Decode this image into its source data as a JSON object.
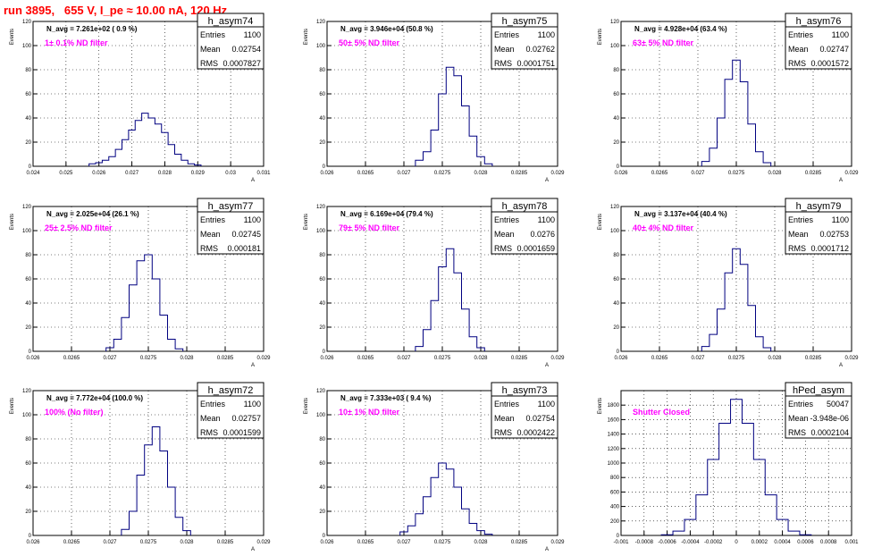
{
  "page_title": "run 3895,   655 V, I_pe ≈ 10.00 nA, 120 Hz",
  "colors": {
    "hist": "#000080",
    "filter_label": "#ff00ff",
    "title": "#ff0000",
    "grid": "#000000"
  },
  "stat_labels": {
    "entries": "Entries",
    "mean": "Mean",
    "rms": "RMS"
  },
  "chart_data": [
    {
      "type": "histogram",
      "name": "h_asym74",
      "n_avg": "N_avg = 7.261e+02 ( 0.9 %)",
      "filter": "1± 0.1% ND filter",
      "entries": "1100",
      "mean": "0.02754",
      "rms": "0.0007827",
      "xlim": [
        0.024,
        0.031
      ],
      "ylim": [
        0,
        120
      ],
      "xticks": [
        0.024,
        0.025,
        0.026,
        0.027,
        0.028,
        0.029,
        0.03,
        0.031
      ],
      "xtick_labels": [
        "0.024",
        "0.025",
        "0.026",
        "0.027",
        "0.028",
        "0.029",
        "0.03",
        "0.031"
      ],
      "yticks": [
        0,
        20,
        40,
        60,
        80,
        100,
        120
      ],
      "ylabel": "Events",
      "xlabel": "A",
      "bins": [
        0.0258,
        0.026,
        0.0262,
        0.0264,
        0.0266,
        0.0268,
        0.027,
        0.0272,
        0.0274,
        0.0276,
        0.0278,
        0.028,
        0.0282,
        0.0284,
        0.0286,
        0.0288,
        0.029
      ],
      "counts": [
        2,
        3,
        5,
        8,
        14,
        22,
        30,
        38,
        44,
        40,
        35,
        28,
        18,
        10,
        5,
        2,
        1
      ]
    },
    {
      "type": "histogram",
      "name": "h_asym75",
      "n_avg": "N_avg = 3.946e+04 (50.8 %)",
      "filter": "50± 5% ND filter",
      "entries": "1100",
      "mean": "0.02762",
      "rms": "0.0001751",
      "xlim": [
        0.026,
        0.029
      ],
      "ylim": [
        0,
        120
      ],
      "xticks": [
        0.026,
        0.0265,
        0.027,
        0.0275,
        0.028,
        0.0285,
        0.029
      ],
      "xtick_labels": [
        "0.026",
        "0.0265",
        "0.027",
        "0.0275",
        "0.028",
        "0.0285",
        "0.029"
      ],
      "yticks": [
        0,
        20,
        40,
        60,
        80,
        100,
        120
      ],
      "ylabel": "Events",
      "xlabel": "A",
      "bins": [
        0.0272,
        0.0273,
        0.0274,
        0.0275,
        0.0276,
        0.0277,
        0.0278,
        0.0279,
        0.028,
        0.0281
      ],
      "counts": [
        5,
        12,
        30,
        60,
        82,
        75,
        50,
        25,
        8,
        2
      ]
    },
    {
      "type": "histogram",
      "name": "h_asym76",
      "n_avg": "N_avg = 4.928e+04 (63.4 %)",
      "filter": "63± 5% ND filter",
      "entries": "1100",
      "mean": "0.02747",
      "rms": "0.0001572",
      "xlim": [
        0.026,
        0.029
      ],
      "ylim": [
        0,
        120
      ],
      "xticks": [
        0.026,
        0.0265,
        0.027,
        0.0275,
        0.028,
        0.0285,
        0.029
      ],
      "xtick_labels": [
        "0.026",
        "0.0265",
        "0.027",
        "0.0275",
        "0.028",
        "0.0285",
        "0.029"
      ],
      "yticks": [
        0,
        20,
        40,
        60,
        80,
        100,
        120
      ],
      "ylabel": "Events",
      "xlabel": "A",
      "bins": [
        0.0271,
        0.0272,
        0.0273,
        0.0274,
        0.0275,
        0.0276,
        0.0277,
        0.0278,
        0.0279
      ],
      "counts": [
        4,
        15,
        40,
        72,
        88,
        70,
        35,
        12,
        3
      ]
    },
    {
      "type": "histogram",
      "name": "h_asym77",
      "n_avg": "N_avg = 2.025e+04 (26.1 %)",
      "filter": "25± 2.5% ND filter",
      "entries": "1100",
      "mean": "0.02745",
      "rms": "0.000181",
      "xlim": [
        0.026,
        0.029
      ],
      "ylim": [
        0,
        120
      ],
      "xticks": [
        0.026,
        0.0265,
        0.027,
        0.0275,
        0.028,
        0.0285,
        0.029
      ],
      "xtick_labels": [
        "0.026",
        "0.0265",
        "0.027",
        "0.0275",
        "0.028",
        "0.0285",
        "0.029"
      ],
      "yticks": [
        0,
        20,
        40,
        60,
        80,
        100,
        120
      ],
      "ylabel": "Events",
      "xlabel": "A",
      "bins": [
        0.027,
        0.0271,
        0.0272,
        0.0273,
        0.0274,
        0.0275,
        0.0276,
        0.0277,
        0.0278,
        0.0279
      ],
      "counts": [
        3,
        10,
        28,
        55,
        75,
        80,
        60,
        30,
        10,
        2
      ]
    },
    {
      "type": "histogram",
      "name": "h_asym78",
      "n_avg": "N_avg = 6.169e+04 (79.4 %)",
      "filter": "79± 5% ND filter",
      "entries": "1100",
      "mean": "0.0276",
      "rms": "0.0001659",
      "xlim": [
        0.026,
        0.029
      ],
      "ylim": [
        0,
        120
      ],
      "xticks": [
        0.026,
        0.0265,
        0.027,
        0.0275,
        0.028,
        0.0285,
        0.029
      ],
      "xtick_labels": [
        "0.026",
        "0.0265",
        "0.027",
        "0.0275",
        "0.028",
        "0.0285",
        "0.029"
      ],
      "yticks": [
        0,
        20,
        40,
        60,
        80,
        100,
        120
      ],
      "ylabel": "Events",
      "xlabel": "A",
      "bins": [
        0.0272,
        0.0273,
        0.0274,
        0.0275,
        0.0276,
        0.0277,
        0.0278,
        0.0279,
        0.028
      ],
      "counts": [
        4,
        18,
        42,
        70,
        85,
        65,
        35,
        12,
        3
      ]
    },
    {
      "type": "histogram",
      "name": "h_asym79",
      "n_avg": "N_avg = 3.137e+04 (40.4 %)",
      "filter": "40± 4% ND filter",
      "entries": "1100",
      "mean": "0.02753",
      "rms": "0.0001712",
      "xlim": [
        0.026,
        0.029
      ],
      "ylim": [
        0,
        120
      ],
      "xticks": [
        0.026,
        0.0265,
        0.027,
        0.0275,
        0.028,
        0.0285,
        0.029
      ],
      "xtick_labels": [
        "0.026",
        "0.0265",
        "0.027",
        "0.0275",
        "0.028",
        "0.0285",
        "0.029"
      ],
      "yticks": [
        0,
        20,
        40,
        60,
        80,
        100,
        120
      ],
      "ylabel": "Events",
      "xlabel": "A",
      "bins": [
        0.0271,
        0.0272,
        0.0273,
        0.0274,
        0.0275,
        0.0276,
        0.0277,
        0.0278,
        0.0279
      ],
      "counts": [
        4,
        14,
        35,
        65,
        85,
        72,
        38,
        12,
        3
      ]
    },
    {
      "type": "histogram",
      "name": "h_asym72",
      "n_avg": "N_avg = 7.772e+04 (100.0 %)",
      "filter": "100% (No filter)",
      "entries": "1100",
      "mean": "0.02757",
      "rms": "0.0001599",
      "xlim": [
        0.026,
        0.029
      ],
      "ylim": [
        0,
        120
      ],
      "xticks": [
        0.026,
        0.0265,
        0.027,
        0.0275,
        0.028,
        0.0285,
        0.029
      ],
      "xtick_labels": [
        "0.026",
        "0.0265",
        "0.027",
        "0.0275",
        "0.028",
        "0.0285",
        "0.029"
      ],
      "yticks": [
        0,
        20,
        40,
        60,
        80,
        100,
        120
      ],
      "ylabel": "Events",
      "xlabel": "A",
      "bins": [
        0.0272,
        0.0273,
        0.0274,
        0.0275,
        0.0276,
        0.0277,
        0.0278,
        0.0279,
        0.028
      ],
      "counts": [
        5,
        20,
        50,
        75,
        90,
        70,
        40,
        15,
        4
      ]
    },
    {
      "type": "histogram",
      "name": "h_asym73",
      "n_avg": "N_avg = 7.333e+03 ( 9.4 %)",
      "filter": "10± 1% ND filter",
      "entries": "1100",
      "mean": "0.02754",
      "rms": "0.0002422",
      "xlim": [
        0.026,
        0.029
      ],
      "ylim": [
        0,
        120
      ],
      "xticks": [
        0.026,
        0.0265,
        0.027,
        0.0275,
        0.028,
        0.0285,
        0.029
      ],
      "xtick_labels": [
        "0.026",
        "0.0265",
        "0.027",
        "0.0275",
        "0.028",
        "0.0285",
        "0.029"
      ],
      "yticks": [
        0,
        20,
        40,
        60,
        80,
        100,
        120
      ],
      "ylabel": "Events",
      "xlabel": "A",
      "bins": [
        0.027,
        0.0271,
        0.0272,
        0.0273,
        0.0274,
        0.0275,
        0.0276,
        0.0277,
        0.0278,
        0.0279,
        0.028,
        0.0281
      ],
      "counts": [
        3,
        8,
        18,
        32,
        48,
        60,
        55,
        40,
        22,
        10,
        4,
        1
      ]
    },
    {
      "type": "histogram",
      "name": "hPed_asym",
      "n_avg": "",
      "filter": "Shutter Closed",
      "entries": "50047",
      "mean": "-3.948e-06",
      "rms": "0.0002104",
      "xlim": [
        -0.001,
        0.001
      ],
      "ylim": [
        0,
        2000
      ],
      "xticks": [
        -0.001,
        -0.0008,
        -0.0006,
        -0.0004,
        -0.0002,
        0,
        0.0002,
        0.0004,
        0.0006,
        0.0008,
        0.001
      ],
      "xtick_labels": [
        "-0.001",
        "-0.0008",
        "-0.0006",
        "-0.0004",
        "-0.0002",
        "0",
        "0.0002",
        "0.0004",
        "0.0006",
        "0.0008",
        "0.001"
      ],
      "yticks": [
        0,
        200,
        400,
        600,
        800,
        1000,
        1200,
        1400,
        1600,
        1800
      ],
      "ylabel": "Events",
      "xlabel": "",
      "bins": [
        -0.0006,
        -0.0005,
        -0.0004,
        -0.0003,
        -0.0002,
        -0.0001,
        0,
        0.0001,
        0.0002,
        0.0003,
        0.0004,
        0.0005,
        0.0006
      ],
      "counts": [
        10,
        60,
        220,
        560,
        1050,
        1550,
        1880,
        1550,
        1050,
        560,
        220,
        60,
        10
      ]
    }
  ]
}
